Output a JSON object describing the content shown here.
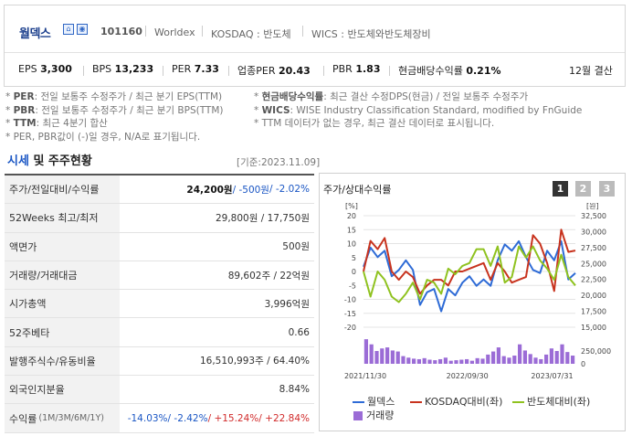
{
  "company": {
    "name": "월덱스",
    "code": "101160",
    "english_name": "Worldex",
    "market": "KOSDAQ : 반도체",
    "wics": "WICS : 반도체와반도체장비",
    "icons": [
      "home-icon",
      "ir-icon"
    ]
  },
  "metrics": {
    "eps_label": "EPS",
    "eps_value": "3,300",
    "bps_label": "BPS",
    "bps_value": "13,233",
    "per_label": "PER",
    "per_value": "7.33",
    "ind_per_label": "업종PER",
    "ind_per_value": "20.43",
    "pbr_label": "PBR",
    "pbr_value": "1.83",
    "div_label": "현금배당수익률",
    "div_value": "0.21%",
    "fiscal": "12월 결산"
  },
  "notes": {
    "left": [
      {
        "key": "PER",
        "text": ": 전일 보통주 수정주가 / 최근 분기 EPS(TTM)"
      },
      {
        "key": "PBR",
        "text": ": 전일 보통주 수정주가 / 최근 분기 BPS(TTM)"
      },
      {
        "key": "TTM",
        "text": ": 최근 4분기 합산"
      },
      {
        "key": "",
        "text": "PER, PBR값이 (-)일 경우, N/A로 표기됩니다."
      }
    ],
    "right": [
      {
        "key": "현금배당수익률",
        "text": ": 최근 결산 수정DPS(현금) / 전일 보통주 수정주가"
      },
      {
        "key": "WICS",
        "text": ": WISE Industry Classification Standard, modified by FnGuide"
      },
      {
        "key": "",
        "text": "TTM 데이터가 없는 경우, 최근 결산 데이터로 표시됩니다."
      }
    ]
  },
  "market_section": {
    "title_a": "시세",
    "title_b": " 및 주주현황",
    "date": "[기준:2023.11.09]",
    "rows": [
      {
        "label": "주가/전일대비/수익률",
        "v1": "24,200원",
        "v2": " / -500원",
        "v3": " / -2.02%"
      },
      {
        "label": "52Weeks 최고/최저",
        "value": "29,800원 / 17,750원"
      },
      {
        "label": "액면가",
        "value": "500원"
      },
      {
        "label": "거래량/거래대금",
        "value": "89,602주 / 22억원"
      },
      {
        "label": "시가총액",
        "value": "3,996억원"
      },
      {
        "label": "52주베타",
        "value": "0.66"
      },
      {
        "label": "발행주식수/유동비율",
        "value": "16,510,993주 / 64.40%"
      },
      {
        "label": "외국인지분율",
        "value": "8.84%"
      },
      {
        "label": "수익률",
        "sub": "(1M/3M/6M/1Y)",
        "r1": "-14.03%",
        "r2": "/ -2.42%",
        "r3": "/ +15.24%",
        "r4": "/ +22.84%"
      }
    ]
  },
  "chart_panel": {
    "title": "주가/상대수익률",
    "pages": [
      "1",
      "2",
      "3"
    ],
    "active_page": "1",
    "legend": [
      {
        "label": "월덱스",
        "color": "#2e6bd6"
      },
      {
        "label": "KOSDAQ대비(좌)",
        "color": "#c8331e"
      },
      {
        "label": "반도체대비(좌)",
        "color": "#8fc21f"
      },
      {
        "label": "거래량",
        "color": "#9b6cd6"
      }
    ]
  },
  "chart_data": {
    "type": "line",
    "left_axis": {
      "unit": "[%]",
      "ticks": [
        20,
        15,
        10,
        5,
        0,
        -5,
        -10,
        -15,
        -20
      ],
      "ylim": [
        -20,
        20
      ]
    },
    "right_axis": {
      "unit": "[원]",
      "ticks": [
        32500,
        30000,
        27500,
        25000,
        22500,
        20000,
        17500,
        15000
      ],
      "ylim": [
        15000,
        32500
      ]
    },
    "volume_axis": {
      "ticks": [
        "250,000",
        "0"
      ],
      "ylim": [
        0,
        500000
      ]
    },
    "x_tick_labels": [
      "2021/11/30",
      "2022/09/30",
      "2023/07/31"
    ],
    "series": [
      {
        "name": "월덱스",
        "axis": "right",
        "color": "#2e6bd6",
        "values": [
          24500,
          27500,
          26000,
          27000,
          23000,
          24000,
          25500,
          24000,
          18500,
          20500,
          21000,
          17500,
          21000,
          20000,
          22000,
          23000,
          21500,
          22500,
          21500,
          25500,
          28000,
          27000,
          28500,
          26000,
          24000,
          23500,
          27000,
          25500,
          28500,
          22500,
          23500
        ]
      },
      {
        "name": "KOSDAQ대비(좌)",
        "axis": "left",
        "color": "#c8331e",
        "values": [
          0,
          11,
          8,
          12,
          0,
          -3,
          0,
          -2,
          -8,
          -5,
          -3,
          -3,
          -5,
          0,
          0,
          1,
          2,
          3,
          -3,
          3,
          0,
          -4,
          -3,
          -2,
          13,
          10,
          3,
          -7,
          15,
          7,
          7.5
        ]
      },
      {
        "name": "반도체대비(좌)",
        "axis": "left",
        "color": "#8fc21f",
        "values": [
          0,
          -9,
          0,
          -3,
          -9,
          -11,
          -8,
          -4,
          -10,
          -3,
          -4,
          -8,
          1,
          -1,
          2,
          3,
          8,
          8,
          2,
          9,
          -4,
          -2,
          9,
          5,
          9,
          4,
          1,
          -3,
          6,
          -2,
          -5
        ]
      },
      {
        "name": "거래량",
        "axis": "volume",
        "color": "#9b6cd6",
        "values": [
          480000,
          380000,
          250000,
          300000,
          320000,
          260000,
          240000,
          150000,
          120000,
          100000,
          90000,
          110000,
          80000,
          70000,
          90000,
          120000,
          60000,
          70000,
          80000,
          90000,
          60000,
          110000,
          100000,
          180000,
          240000,
          320000,
          150000,
          120000,
          160000,
          380000,
          260000,
          190000,
          120000,
          90000,
          180000,
          300000,
          250000,
          380000,
          230000,
          160000
        ]
      }
    ]
  }
}
